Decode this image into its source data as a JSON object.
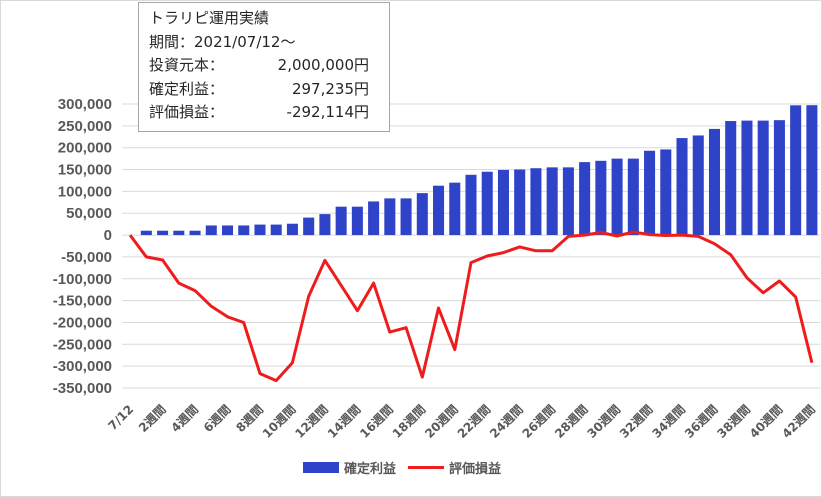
{
  "info_box": {
    "title": "トラリピ運用実績",
    "period": "期間：2021/07/12～",
    "rows": [
      {
        "label": "投資元本：",
        "value": "2,000,000円"
      },
      {
        "label": "確定利益：",
        "value": "297,235円"
      },
      {
        "label": "評価損益：",
        "value": "-292,114円"
      }
    ]
  },
  "colors": {
    "bar": "#2e43c8",
    "line": "#ee1c1c",
    "grid": "#d9d9d9",
    "text": "#595959"
  },
  "chart_data": {
    "type": "bar",
    "categories": [
      "7/12",
      "1週間",
      "2週間",
      "3週間",
      "4週間",
      "5週間",
      "6週間",
      "7週間",
      "8週間",
      "9週間",
      "10週間",
      "11週間",
      "12週間",
      "13週間",
      "14週間",
      "15週間",
      "16週間",
      "17週間",
      "18週間",
      "19週間",
      "20週間",
      "21週間",
      "22週間",
      "23週間",
      "24週間",
      "25週間",
      "26週間",
      "27週間",
      "28週間",
      "29週間",
      "30週間",
      "31週間",
      "32週間",
      "33週間",
      "34週間",
      "35週間",
      "36週間",
      "37週間",
      "38週間",
      "39週間",
      "40週間",
      "41週間",
      "42週間"
    ],
    "visible_tick_labels": [
      "7/12",
      "2週間",
      "4週間",
      "6週間",
      "8週間",
      "10週間",
      "12週間",
      "14週間",
      "16週間",
      "18週間",
      "20週間",
      "22週間",
      "24週間",
      "26週間",
      "28週間",
      "30週間",
      "32週間",
      "34週間",
      "36週間",
      "38週間",
      "40週間",
      "42週間"
    ],
    "series": [
      {
        "name": "確定利益",
        "type": "bar",
        "values": [
          0,
          10000,
          10000,
          10000,
          10000,
          22000,
          22000,
          22000,
          24000,
          24000,
          26000,
          40000,
          48000,
          65000,
          65000,
          77000,
          84000,
          84000,
          96000,
          113000,
          120000,
          138000,
          145000,
          149000,
          150000,
          153000,
          155000,
          155000,
          167000,
          170000,
          175000,
          175000,
          193000,
          196000,
          222000,
          228000,
          243000,
          261000,
          262000,
          262000,
          263000,
          297000,
          297235
        ]
      },
      {
        "name": "評価損益",
        "type": "line",
        "values": [
          0,
          -50000,
          -57000,
          -110000,
          -127000,
          -163000,
          -187000,
          -200000,
          -317000,
          -333000,
          -292000,
          -140000,
          -58000,
          -115000,
          -173000,
          -110000,
          -222000,
          -212000,
          -325000,
          -167000,
          -262000,
          -63000,
          -48000,
          -40000,
          -27000,
          -36000,
          -36000,
          -3000,
          0,
          6000,
          -2000,
          7000,
          1000,
          -1000,
          0,
          -3000,
          -20000,
          -45000,
          -98000,
          -132000,
          -105000,
          -142000,
          -292114
        ]
      }
    ],
    "ylim": [
      -350000,
      300000
    ],
    "yticks": [
      300000,
      250000,
      200000,
      150000,
      100000,
      50000,
      0,
      -50000,
      -100000,
      -150000,
      -200000,
      -250000,
      -300000,
      -350000
    ],
    "ytick_labels": [
      "300,000",
      "250,000",
      "200,000",
      "150,000",
      "100,000",
      "50,000",
      "0",
      "-50,000",
      "-100,000",
      "-150,000",
      "-200,000",
      "-250,000",
      "-300,000",
      "-350,000"
    ],
    "grid": true,
    "legend_position": "bottom"
  }
}
